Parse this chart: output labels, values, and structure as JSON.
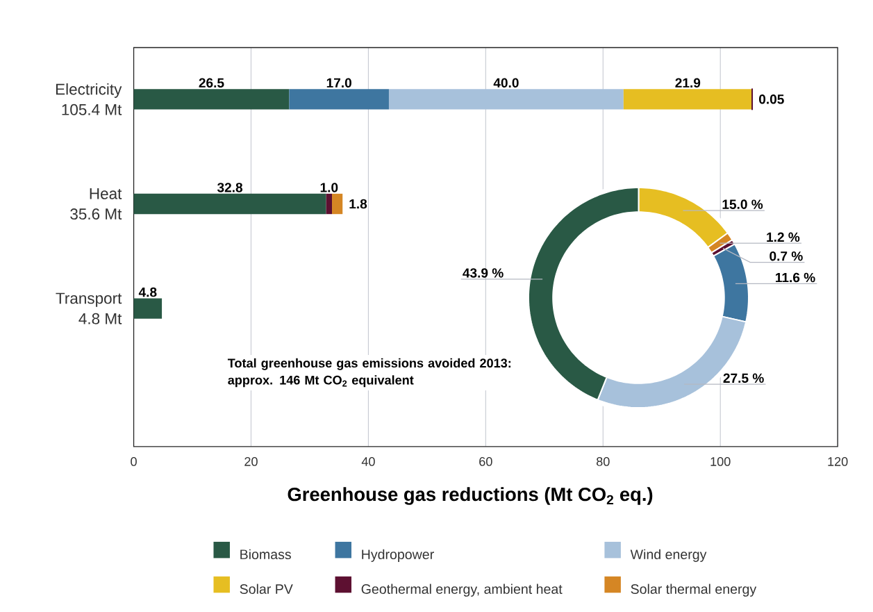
{
  "chart_data": [
    {
      "type": "bar",
      "orientation": "horizontal",
      "stacked": true,
      "categories": [
        "Electricity",
        "Heat",
        "Transport"
      ],
      "totals": [
        "105.4 Mt",
        "35.6 Mt",
        "4.8 Mt"
      ],
      "series": [
        {
          "name": "Biomass",
          "color": "#295945",
          "values": [
            26.5,
            32.8,
            4.8
          ],
          "value_labels": [
            "26.5",
            "32.8",
            "4.8"
          ]
        },
        {
          "name": "Hydropower",
          "color": "#3e76a0",
          "values": [
            17.0,
            null,
            null
          ],
          "value_labels": [
            "17.0",
            null,
            null
          ]
        },
        {
          "name": "Wind energy",
          "color": "#a7c1db",
          "values": [
            40.0,
            null,
            null
          ],
          "value_labels": [
            "40.0",
            null,
            null
          ]
        },
        {
          "name": "Solar PV",
          "color": "#e6be22",
          "values": [
            21.9,
            null,
            null
          ],
          "value_labels": [
            "21.9",
            null,
            null
          ]
        },
        {
          "name": "Geothermal energy, ambient heat",
          "color": "#5d1031",
          "values": [
            0.05,
            1.0,
            null
          ],
          "value_labels": [
            "0.05",
            "1.0",
            null
          ]
        },
        {
          "name": "Solar thermal energy",
          "color": "#d58624",
          "values": [
            null,
            1.8,
            null
          ],
          "value_labels": [
            null,
            "1.8",
            null
          ]
        }
      ],
      "xlabel": "Greenhouse gas reductions (Mt CO$_{2}$ eq.)",
      "xlim": [
        0,
        120
      ],
      "xticks": [
        0,
        20,
        40,
        60,
        80,
        100,
        120
      ],
      "grid": "x",
      "legend": "bottom"
    },
    {
      "type": "donut",
      "categories": [
        null,
        null,
        null,
        null,
        null,
        null
      ],
      "values": [
        15.0,
        1.2,
        0.7,
        11.6,
        27.5,
        43.9
      ],
      "colors": [
        "#e6be22",
        "#d58624",
        "#5d1031",
        "#3e76a0",
        "#a7c1db",
        "#295945"
      ],
      "value_labels": [
        "15.0 %",
        "1.2 %",
        "0.7 %",
        "11.6 %",
        "27.5 %",
        "43.9 %"
      ],
      "annotations": [
        "Total greenhouse gas emissions avoided 2013: approx. 146 Mt CO$_{2}$ equivalent"
      ]
    }
  ]
}
